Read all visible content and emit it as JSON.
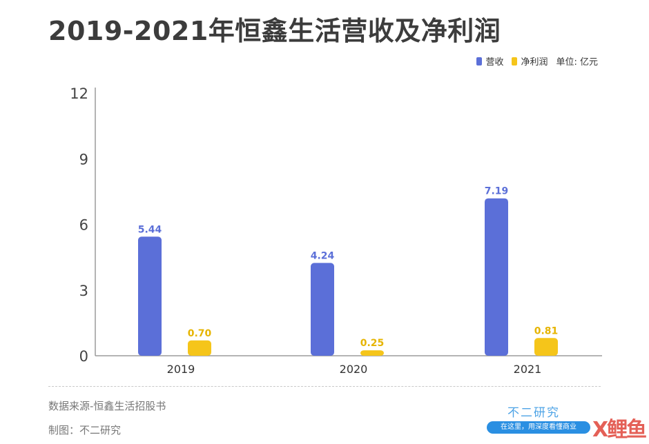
{
  "title": "2019-2021年恒鑫生活营收及净利润",
  "legend": {
    "unit_label": "单位: 亿元"
  },
  "chart_data": {
    "type": "bar",
    "title": "2019-2021年恒鑫生活营收及净利润",
    "categories": [
      "2019",
      "2020",
      "2021"
    ],
    "series": [
      {
        "name": "营收",
        "values": [
          5.44,
          4.24,
          7.19
        ],
        "color": "#5b6fd8"
      },
      {
        "name": "净利润",
        "values": [
          0.7,
          0.25,
          0.81
        ],
        "color": "#f5c51a"
      }
    ],
    "data_labels": [
      [
        "5.44",
        "4.24",
        "7.19"
      ],
      [
        "0.70",
        "0.25",
        "0.81"
      ]
    ],
    "ylim": [
      0,
      12
    ],
    "yticks": [
      "0",
      "3",
      "6",
      "9",
      "12"
    ],
    "grid": false,
    "legend_position": "top-right"
  },
  "footer": {
    "source": "数据来源-恒鑫生活招股书",
    "credit": "制图：不二研究",
    "brand": "不二研究",
    "slogan": "在这里，用深度看懂商业",
    "watermark": "X鲤鱼"
  }
}
